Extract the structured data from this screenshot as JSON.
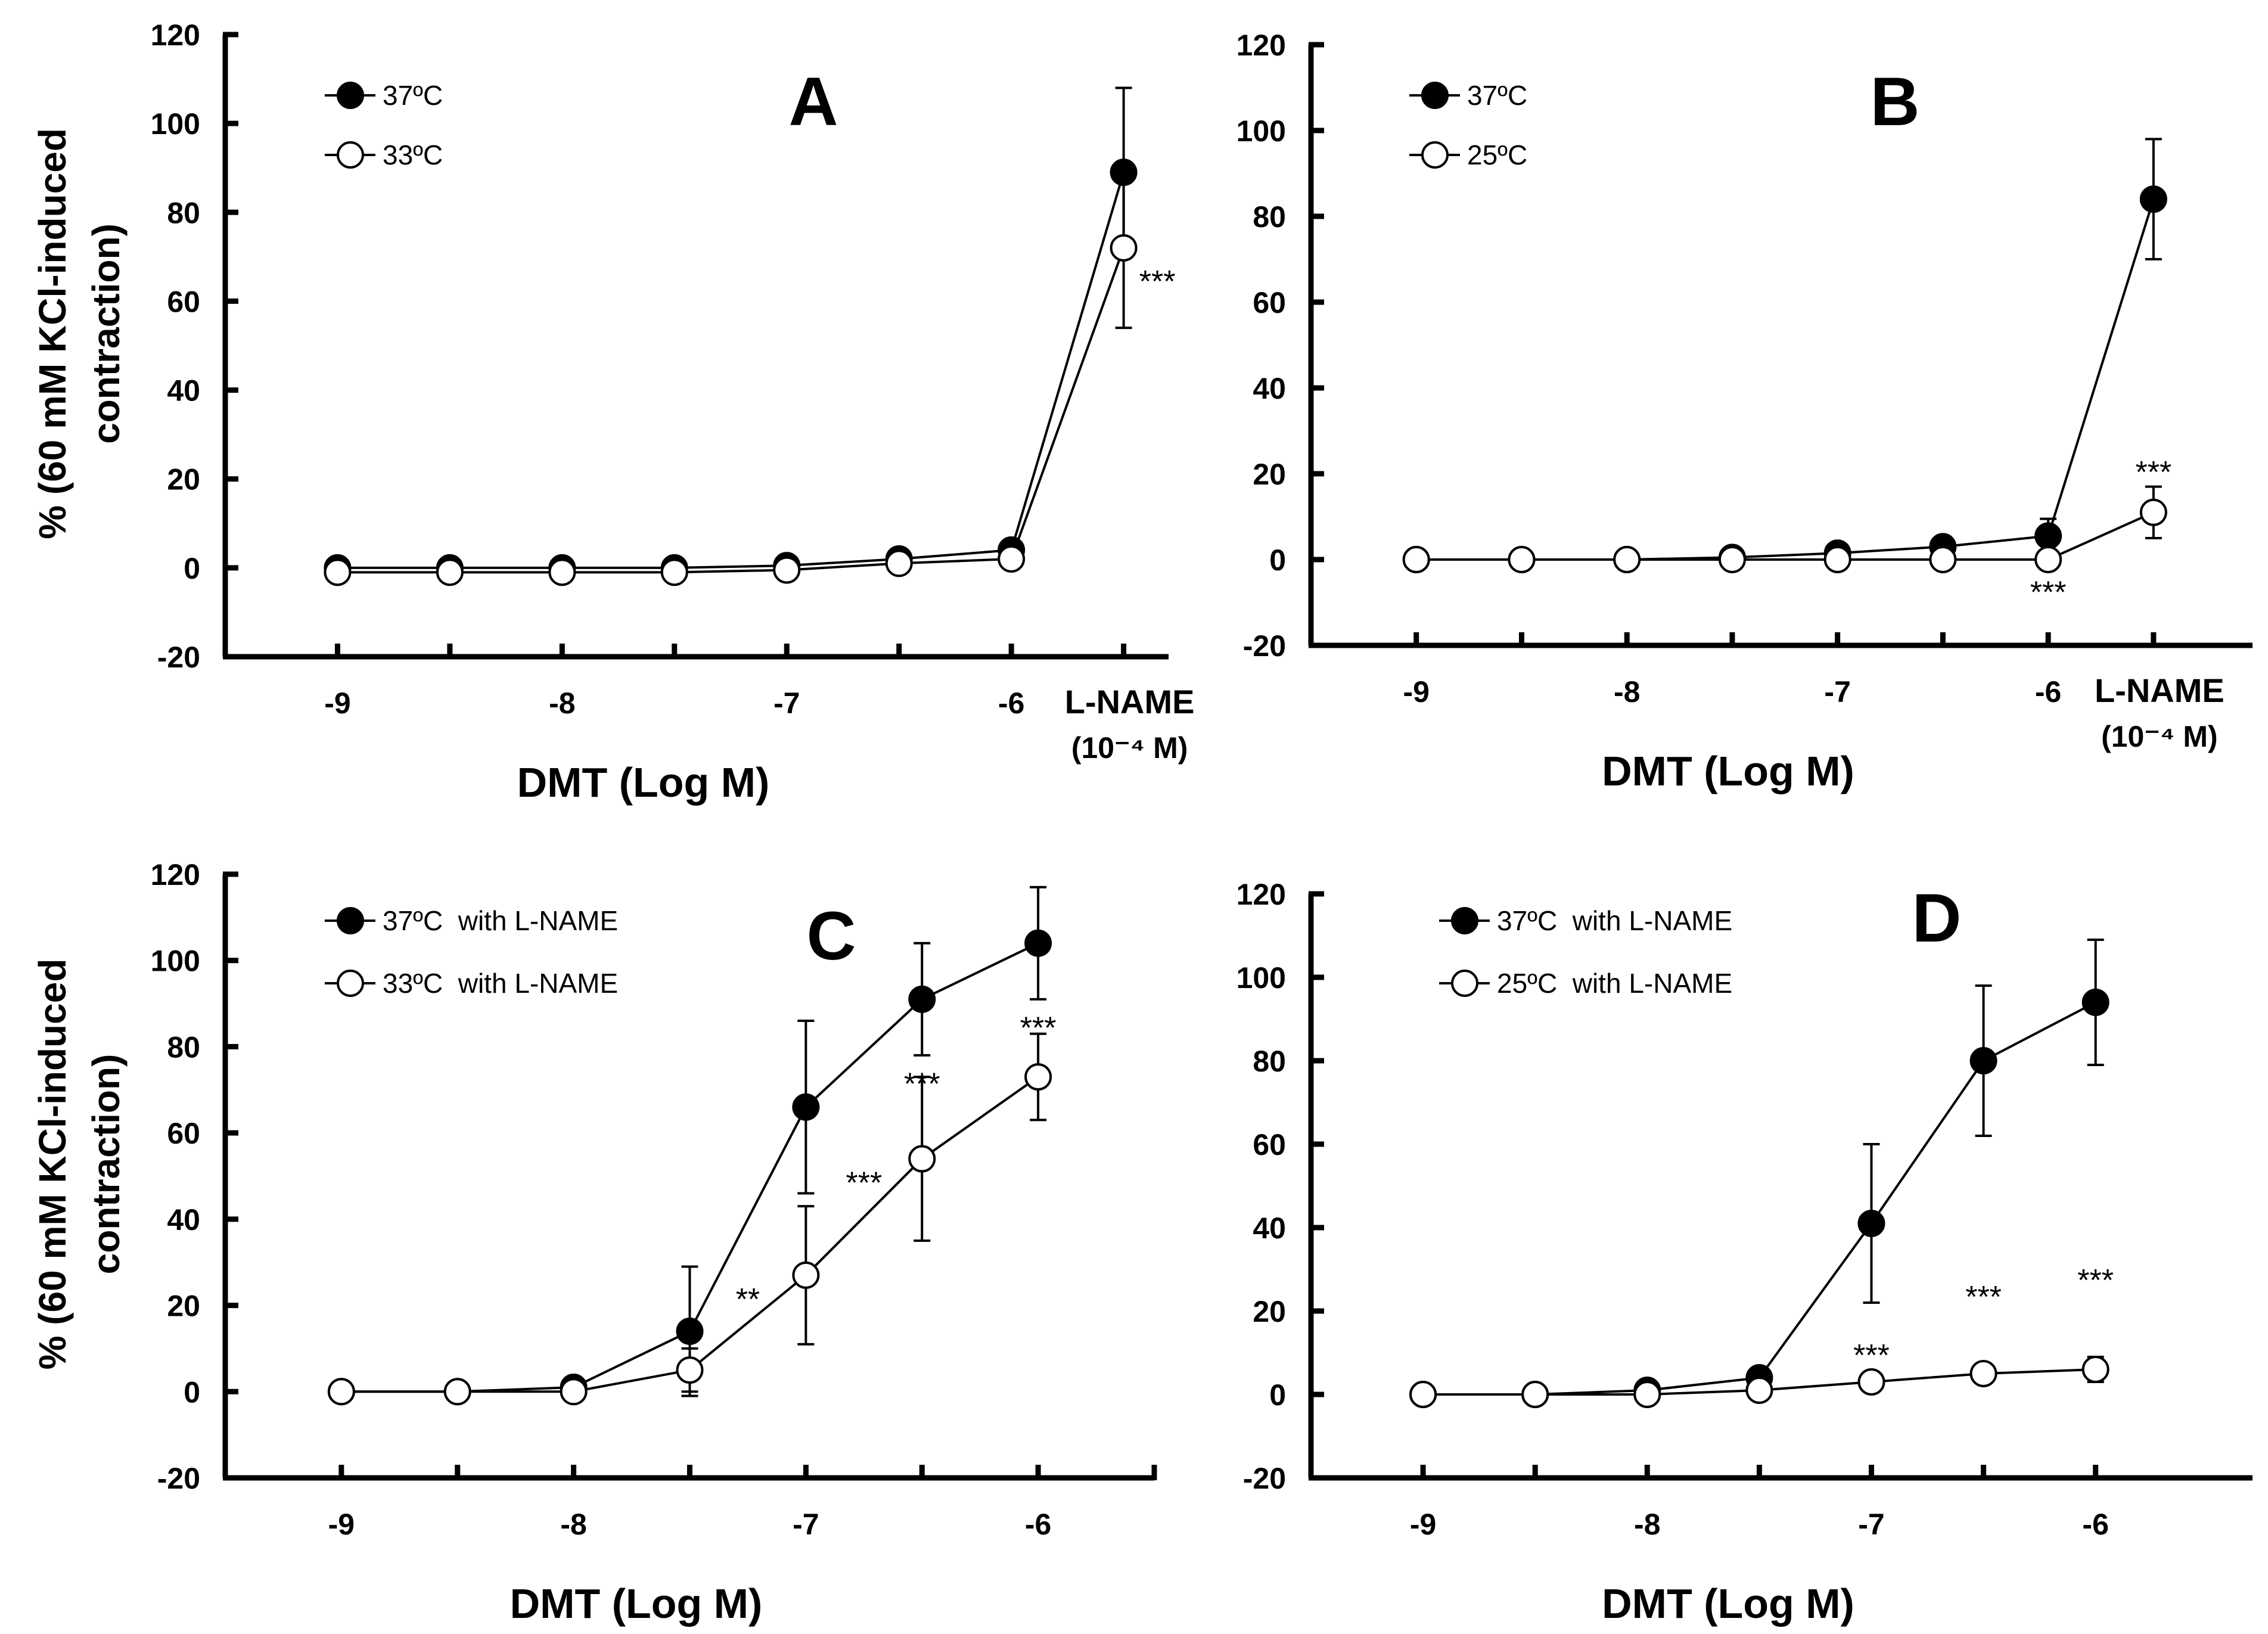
{
  "colors": {
    "ink": "#000000",
    "paper": "#ffffff"
  },
  "chart_data": [
    {
      "type": "line",
      "panel_label": "A",
      "ylabel_lines": [
        "% (60 mM KCl-induced",
        "contraction)"
      ],
      "xlabel": "DMT (Log M)",
      "ylim": [
        -20,
        120
      ],
      "yticks": [
        -20,
        0,
        20,
        40,
        60,
        80,
        100,
        120
      ],
      "xlim": [
        -9.5,
        -5.3
      ],
      "xticks": [
        {
          "x": -9,
          "label": "-9"
        },
        {
          "x": -8.5,
          "label": ""
        },
        {
          "x": -8,
          "label": "-8"
        },
        {
          "x": -7.5,
          "label": ""
        },
        {
          "x": -7,
          "label": "-7"
        },
        {
          "x": -6.5,
          "label": ""
        },
        {
          "x": -6,
          "label": "-6"
        },
        {
          "x": -5.5,
          "label": ""
        }
      ],
      "extra_xlabel": {
        "x": -5.5,
        "lines": [
          "L-NAME",
          "(10⁻⁴ M)"
        ]
      },
      "series": [
        {
          "name": "37ºC",
          "filled": true,
          "x": [
            -9,
            -8.5,
            -8,
            -7.5,
            -7,
            -6.5,
            -6,
            -5.5
          ],
          "y": [
            0,
            0,
            0,
            0,
            0.5,
            2,
            4,
            89
          ],
          "err": [
            1,
            1,
            1,
            1,
            1,
            1.5,
            2,
            19
          ]
        },
        {
          "name": "33ºC",
          "filled": false,
          "x": [
            -9,
            -8.5,
            -8,
            -7.5,
            -7,
            -6.5,
            -6,
            -5.5
          ],
          "y": [
            -1,
            -1,
            -1,
            -1,
            -0.5,
            1,
            2,
            72
          ],
          "err": [
            1,
            1,
            1,
            1,
            1,
            1.5,
            2,
            18
          ]
        }
      ],
      "annotations": [
        {
          "text": "***",
          "x": -5.35,
          "y": 65
        }
      ]
    },
    {
      "type": "line",
      "panel_label": "B",
      "ylabel_lines": [],
      "xlabel": "DMT (Log M)",
      "ylim": [
        -20,
        120
      ],
      "yticks": [
        -20,
        0,
        20,
        40,
        60,
        80,
        100,
        120
      ],
      "xlim": [
        -9.5,
        -5.03
      ],
      "xticks": [
        {
          "x": -9,
          "label": "-9"
        },
        {
          "x": -8.5,
          "label": ""
        },
        {
          "x": -8,
          "label": "-8"
        },
        {
          "x": -7.5,
          "label": ""
        },
        {
          "x": -7,
          "label": "-7"
        },
        {
          "x": -6.5,
          "label": ""
        },
        {
          "x": -6,
          "label": "-6"
        },
        {
          "x": -5.5,
          "label": ""
        }
      ],
      "extra_xlabel": {
        "x": -5.5,
        "lines": [
          "L-NAME",
          "(10⁻⁴ M)"
        ]
      },
      "series": [
        {
          "name": "37ºC",
          "filled": true,
          "x": [
            -9,
            -8.5,
            -8,
            -7.5,
            -7,
            -6.5,
            -6,
            -5.5
          ],
          "y": [
            0,
            0,
            0,
            0.5,
            1.5,
            3,
            5.5,
            84
          ],
          "err": [
            1,
            1,
            1,
            1,
            1,
            1.5,
            4,
            14
          ]
        },
        {
          "name": "25ºC",
          "filled": false,
          "x": [
            -9,
            -8.5,
            -8,
            -7.5,
            -7,
            -6.5,
            -6,
            -5.5
          ],
          "y": [
            0,
            0,
            0,
            0,
            0,
            0,
            0,
            11
          ],
          "err": [
            1,
            1,
            1,
            1,
            1,
            1,
            1,
            6
          ]
        }
      ],
      "annotations": [
        {
          "text": "***",
          "x": -5.5,
          "y": 21
        },
        {
          "text": "***",
          "x": -6,
          "y": -7
        }
      ]
    },
    {
      "type": "line",
      "panel_label": "C",
      "ylabel_lines": [
        "% (60 mM KCl-induced",
        "contraction)"
      ],
      "xlabel": "DMT (Log M)",
      "ylim": [
        -20,
        120
      ],
      "yticks": [
        -20,
        0,
        20,
        40,
        60,
        80,
        100,
        120
      ],
      "xlim": [
        -9.5,
        -5.5
      ],
      "xticks": [
        {
          "x": -9,
          "label": "-9"
        },
        {
          "x": -8.5,
          "label": ""
        },
        {
          "x": -8,
          "label": "-8"
        },
        {
          "x": -7.5,
          "label": ""
        },
        {
          "x": -7,
          "label": "-7"
        },
        {
          "x": -6.5,
          "label": ""
        },
        {
          "x": -6,
          "label": "-6"
        },
        {
          "x": -5.5,
          "label": ""
        }
      ],
      "series": [
        {
          "name": "37ºC  with L-NAME",
          "filled": true,
          "x": [
            -9,
            -8.5,
            -8,
            -7.5,
            -7,
            -6.5,
            -6
          ],
          "y": [
            0,
            0,
            1,
            14,
            66,
            91,
            104
          ],
          "err": [
            1,
            1,
            1,
            15,
            20,
            13,
            13
          ]
        },
        {
          "name": "33ºC  with L-NAME",
          "filled": false,
          "x": [
            -9,
            -8.5,
            -8,
            -7.5,
            -7,
            -6.5,
            -6
          ],
          "y": [
            0,
            0,
            0,
            5,
            27,
            54,
            73
          ],
          "err": [
            1,
            1,
            1,
            5,
            16,
            19,
            10
          ]
        }
      ],
      "annotations": [
        {
          "text": "**",
          "x": -7.25,
          "y": 22
        },
        {
          "text": "***",
          "x": -6.75,
          "y": 49
        },
        {
          "text": "***",
          "x": -6.5,
          "y": 72
        },
        {
          "text": "***",
          "x": -6,
          "y": 85
        }
      ]
    },
    {
      "type": "line",
      "panel_label": "D",
      "ylabel_lines": [],
      "xlabel": "DMT (Log M)",
      "ylim": [
        -20,
        120
      ],
      "yticks": [
        -20,
        0,
        20,
        40,
        60,
        80,
        100,
        120
      ],
      "xlim": [
        -9.5,
        -5.3
      ],
      "xticks": [
        {
          "x": -9,
          "label": "-9"
        },
        {
          "x": -8.5,
          "label": ""
        },
        {
          "x": -8,
          "label": "-8"
        },
        {
          "x": -7.5,
          "label": ""
        },
        {
          "x": -7,
          "label": "-7"
        },
        {
          "x": -6.5,
          "label": ""
        },
        {
          "x": -6,
          "label": "-6"
        }
      ],
      "series": [
        {
          "name": "37ºC  with L-NAME",
          "filled": true,
          "x": [
            -9,
            -8.5,
            -8,
            -7.5,
            -7,
            -6.5,
            -6
          ],
          "y": [
            0,
            0,
            1,
            4,
            41,
            80,
            94
          ],
          "err": [
            1,
            1,
            1,
            1,
            19,
            18,
            15
          ]
        },
        {
          "name": "25ºC  with L-NAME",
          "filled": false,
          "x": [
            -9,
            -8.5,
            -8,
            -7.5,
            -7,
            -6.5,
            -6
          ],
          "y": [
            0,
            0,
            0,
            1,
            3,
            5,
            6
          ],
          "err": [
            1,
            1,
            1,
            1,
            1,
            2,
            3
          ]
        }
      ],
      "annotations": [
        {
          "text": "***",
          "x": -7,
          "y": 10
        },
        {
          "text": "***",
          "x": -6.5,
          "y": 24
        },
        {
          "text": "***",
          "x": -6,
          "y": 28
        }
      ]
    }
  ]
}
